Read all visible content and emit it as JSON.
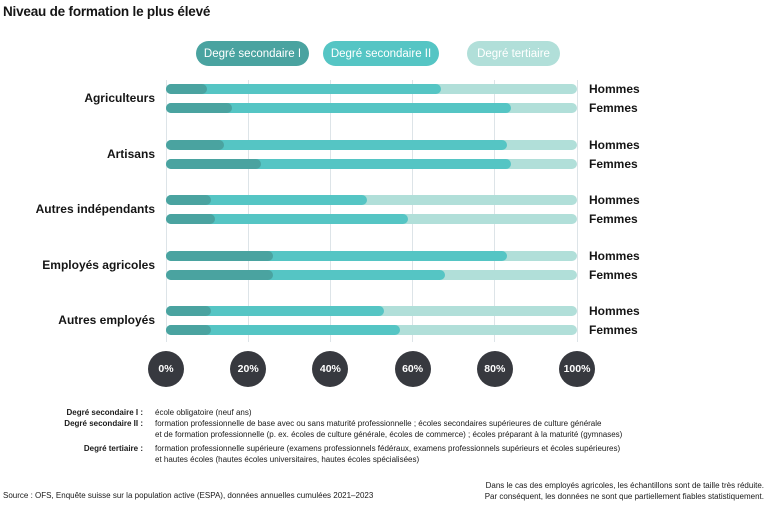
{
  "title": "Niveau de formation le plus élevé",
  "legend": [
    {
      "label": "Degré secondaire I",
      "color": "#4AA3A0"
    },
    {
      "label": "Degré secondaire II",
      "color": "#55C5C4"
    },
    {
      "label": "Degré tertiaire",
      "color": "#B1DFD9"
    }
  ],
  "colors": {
    "secondaire_1": "#4AA3A0",
    "secondaire_2": "#55C5C4",
    "tertiaire": "#B1DFD9",
    "axis_bubble": "#37393f",
    "gridline": "#dde4e8",
    "text": "#151515"
  },
  "chart_data": {
    "type": "bar",
    "orientation": "horizontal",
    "stacked": true,
    "unit": "%",
    "xlim": [
      0,
      100
    ],
    "grid": true,
    "x_ticks": [
      "0%",
      "20%",
      "40%",
      "60%",
      "80%",
      "100%"
    ],
    "series_names": [
      "Degré secondaire I",
      "Degré secondaire II",
      "Degré tertiaire"
    ],
    "legend_position": "top",
    "groups": [
      {
        "category": "Agriculteurs",
        "rows": [
          {
            "label": "Hommes",
            "values": [
              10,
              57,
              33
            ]
          },
          {
            "label": "Femmes",
            "values": [
              16,
              68,
              16
            ]
          }
        ]
      },
      {
        "category": "Artisans",
        "rows": [
          {
            "label": "Hommes",
            "values": [
              14,
              69,
              17
            ]
          },
          {
            "label": "Femmes",
            "values": [
              23,
              61,
              16
            ]
          }
        ]
      },
      {
        "category": "Autres indépendants",
        "rows": [
          {
            "label": "Hommes",
            "values": [
              11,
              38,
              51
            ]
          },
          {
            "label": "Femmes",
            "values": [
              12,
              47,
              41
            ]
          }
        ]
      },
      {
        "category": "Employés agricoles",
        "rows": [
          {
            "label": "Hommes",
            "values": [
              26,
              57,
              17
            ]
          },
          {
            "label": "Femmes",
            "values": [
              26,
              42,
              32
            ]
          }
        ]
      },
      {
        "category": "Autres employés",
        "rows": [
          {
            "label": "Hommes",
            "values": [
              11,
              42,
              47
            ]
          },
          {
            "label": "Femmes",
            "values": [
              11,
              46,
              43
            ]
          }
        ]
      }
    ]
  },
  "footnotes": [
    {
      "term": "Degré secondaire I :",
      "lines": [
        "école obligatoire (neuf ans)"
      ]
    },
    {
      "term": "Degré secondaire II :",
      "lines": [
        "formation professionnelle de base avec ou sans maturité professionnelle ; écoles secondaires supérieures de culture générale",
        "et de formation professionnelle (p. ex. écoles de culture générale, écoles de commerce) ; écoles préparant à la maturité (gymnases)"
      ]
    },
    {
      "term": "Degré tertiaire :",
      "lines": [
        "formation professionnelle supérieure (examens professionnels fédéraux, examens professionnels supérieurs et écoles supérieures)",
        "et hautes écoles (hautes écoles universitaires, hautes écoles spécialisées)"
      ]
    }
  ],
  "source": "Source : OFS, Enquête suisse sur la population active (ESPA), données annuelles cumulées 2021–2023",
  "note_lines": [
    "Dans le cas des employés agricoles, les échantillons sont de taille très réduite.",
    "Par conséquent, les données ne sont que partiellement fiables statistiquement."
  ]
}
